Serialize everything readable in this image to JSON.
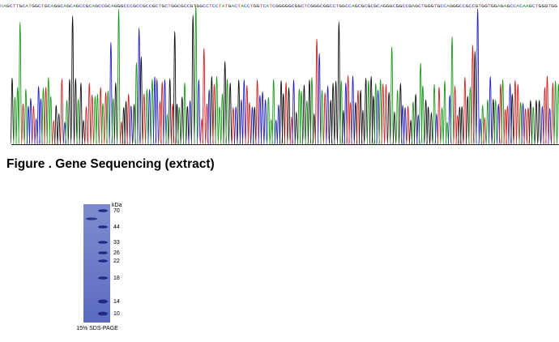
{
  "sequence": "NAGCTTGCATGGCTGCAGGCAGCAGCCGCAGCCGCAGGGCCCGCCGCCGCTGCTGGCGCCGTGGCCTCCTATGACTACCTGGTCATCGGGGGCGGCTCGGGCGGCCTGGCCAGCGCGCGCAGGGCGGCCGAGCTGGGTGCCAGGGCCGCCGTGGTGGAGAGCCACAAGCTGGGTGG",
  "caption": "Figure . Gene Sequencing (extract)",
  "gel": {
    "unit": "kDa",
    "markers": [
      "70",
      "44",
      "33",
      "26",
      "22",
      "18",
      "14",
      "10"
    ],
    "label": "15% SDS-PAGE"
  }
}
